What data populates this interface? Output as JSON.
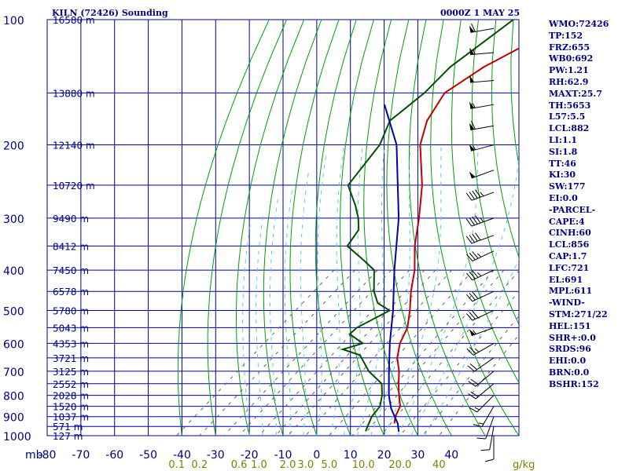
{
  "chart_data": {
    "type": "skew-t",
    "title": "KILN (72426) Sounding",
    "timestamp": "0000Z  1 MAY 25",
    "pressure_axis_unit": "mb",
    "pressure_ticks": [
      100,
      200,
      300,
      400,
      500,
      600,
      700,
      800,
      900,
      1000
    ],
    "temperature_ticks": [
      -80,
      -70,
      -60,
      -50,
      -40,
      -30,
      -20,
      -10,
      0,
      10,
      20,
      30,
      40
    ],
    "mixing_ratio_unit": "g/kg",
    "mixing_ratio_labels": [
      {
        "label": "0.1",
        "value": 0.1
      },
      {
        "label": "0.2",
        "value": 0.2
      },
      {
        "label": "0.6",
        "value": 0.6
      },
      {
        "label": "1.0",
        "value": 1.0
      },
      {
        "label": "2.0",
        "value": 2.0
      },
      {
        "label": "3.0",
        "value": 3.0
      },
      {
        "label": "5.0",
        "value": 5.0
      },
      {
        "label": "10.0",
        "value": 10.0
      },
      {
        "label": "20.0",
        "value": 20.0
      },
      {
        "label": "40",
        "value": 40
      }
    ],
    "height_labels": [
      {
        "p": 100,
        "label": "16580 m"
      },
      {
        "p": 150,
        "label": "13880 m"
      },
      {
        "p": 200,
        "label": "12140 m"
      },
      {
        "p": 250,
        "label": "10720 m"
      },
      {
        "p": 300,
        "label": "9490 m"
      },
      {
        "p": 350,
        "label": "8412 m"
      },
      {
        "p": 400,
        "label": "7450 m"
      },
      {
        "p": 450,
        "label": "6578 m"
      },
      {
        "p": 500,
        "label": "5780 m"
      },
      {
        "p": 550,
        "label": "5043 m"
      },
      {
        "p": 600,
        "label": "4353 m"
      },
      {
        "p": 650,
        "label": "3721 m"
      },
      {
        "p": 700,
        "label": "3125 m"
      },
      {
        "p": 750,
        "label": "2552 m"
      },
      {
        "p": 800,
        "label": "2028 m"
      },
      {
        "p": 850,
        "label": "1520 m"
      },
      {
        "p": 900,
        "label": "1037 m"
      },
      {
        "p": 950,
        "label": "571 m"
      },
      {
        "p": 1000,
        "label": "127 m"
      }
    ],
    "series": [
      {
        "name": "temperature",
        "color": "#c00000",
        "points": [
          [
            100,
            -64
          ],
          [
            115,
            -68
          ],
          [
            130,
            -73
          ],
          [
            150,
            -76
          ],
          [
            175,
            -72
          ],
          [
            200,
            -66
          ],
          [
            250,
            -52
          ],
          [
            300,
            -42
          ],
          [
            350,
            -34
          ],
          [
            400,
            -26
          ],
          [
            450,
            -20
          ],
          [
            500,
            -14
          ],
          [
            550,
            -9
          ],
          [
            600,
            -6
          ],
          [
            650,
            -2
          ],
          [
            700,
            3
          ],
          [
            750,
            7
          ],
          [
            800,
            11
          ],
          [
            850,
            15
          ],
          [
            900,
            17
          ],
          [
            935,
            19
          ]
        ]
      },
      {
        "name": "dewpoint",
        "color": "#005000",
        "points": [
          [
            100,
            -80
          ],
          [
            130,
            -83
          ],
          [
            150,
            -82
          ],
          [
            175,
            -83
          ],
          [
            200,
            -78
          ],
          [
            250,
            -74
          ],
          [
            280,
            -65
          ],
          [
            300,
            -60
          ],
          [
            320,
            -56
          ],
          [
            350,
            -54
          ],
          [
            380,
            -44
          ],
          [
            400,
            -38
          ],
          [
            450,
            -31
          ],
          [
            480,
            -26
          ],
          [
            500,
            -20
          ],
          [
            550,
            -24
          ],
          [
            570,
            -24
          ],
          [
            600,
            -17
          ],
          [
            620,
            -21
          ],
          [
            640,
            -14
          ],
          [
            700,
            -6
          ],
          [
            750,
            2
          ],
          [
            800,
            6
          ],
          [
            850,
            9
          ],
          [
            900,
            10
          ],
          [
            950,
            12
          ],
          [
            975,
            13
          ]
        ]
      },
      {
        "name": "parcel",
        "color": "#0000b0",
        "points": [
          [
            160,
            -90
          ],
          [
            200,
            -73
          ],
          [
            300,
            -48
          ],
          [
            400,
            -32
          ],
          [
            500,
            -19
          ],
          [
            600,
            -9
          ],
          [
            700,
            0
          ],
          [
            800,
            8
          ],
          [
            860,
            13
          ],
          [
            935,
            20
          ],
          [
            978,
            23
          ]
        ]
      }
    ],
    "wind_barbs": [
      {
        "p": 105,
        "dir": 260,
        "kt": 60
      },
      {
        "p": 120,
        "dir": 265,
        "kt": 55
      },
      {
        "p": 140,
        "dir": 265,
        "kt": 50
      },
      {
        "p": 160,
        "dir": 260,
        "kt": 55
      },
      {
        "p": 180,
        "dir": 260,
        "kt": 60
      },
      {
        "p": 200,
        "dir": 255,
        "kt": 55
      },
      {
        "p": 230,
        "dir": 250,
        "kt": 50
      },
      {
        "p": 260,
        "dir": 250,
        "kt": 45
      },
      {
        "p": 300,
        "dir": 250,
        "kt": 45
      },
      {
        "p": 330,
        "dir": 250,
        "kt": 40
      },
      {
        "p": 360,
        "dir": 245,
        "kt": 35
      },
      {
        "p": 400,
        "dir": 245,
        "kt": 35
      },
      {
        "p": 450,
        "dir": 245,
        "kt": 30
      },
      {
        "p": 500,
        "dir": 245,
        "kt": 30
      },
      {
        "p": 550,
        "dir": 250,
        "kt": 55
      },
      {
        "p": 600,
        "dir": 240,
        "kt": 25
      },
      {
        "p": 650,
        "dir": 235,
        "kt": 20
      },
      {
        "p": 700,
        "dir": 230,
        "kt": 20
      },
      {
        "p": 750,
        "dir": 230,
        "kt": 20
      },
      {
        "p": 800,
        "dir": 225,
        "kt": 15
      },
      {
        "p": 850,
        "dir": 210,
        "kt": 15
      },
      {
        "p": 900,
        "dir": 200,
        "kt": 10
      },
      {
        "p": 950,
        "dir": 190,
        "kt": 10
      },
      {
        "p": 1000,
        "dir": 180,
        "kt": 10
      }
    ],
    "colors": {
      "isobar": "#0000a0",
      "isotherm": "#0000a0",
      "dry_adiabat": "#00a000",
      "moist_adiabat": "#5bc8ee",
      "mixing_ratio": "#606060",
      "text": "#000080",
      "mixing_label": "#808000",
      "wind_barb": "#000000"
    }
  },
  "indices": [
    "WMO:72426",
    "TP:152",
    "FRZ:655",
    "WB0:692",
    "PW:1.21",
    "RH:62.9",
    "MAXT:25.7",
    "TH:5653",
    "L57:5.5",
    "LCL:882",
    "LI:1.1",
    "SI:1.8",
    "TT:46",
    "KI:30",
    "SW:177",
    "EI:0.0",
    "-PARCEL-",
    "CAPE:4",
    "CINH:60",
    "LCL:856",
    "CAP:1.7",
    "LFC:721",
    "EL:691",
    "MPL:611",
    "-WIND-",
    "STM:271/22",
    "HEL:151",
    "SHR+:0.0",
    "SRDS:96",
    "EHI:0.0",
    "BRN:0.0",
    "BSHR:152"
  ]
}
